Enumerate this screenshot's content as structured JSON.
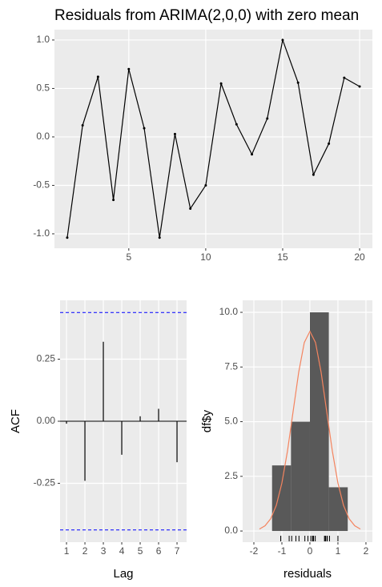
{
  "chart_data": [
    {
      "type": "line",
      "title": "Residuals from ARIMA(2,0,0) with zero mean",
      "x": [
        1,
        2,
        3,
        4,
        5,
        6,
        7,
        8,
        9,
        10,
        11,
        12,
        13,
        14,
        15,
        16,
        17,
        18,
        19,
        20
      ],
      "values": [
        -1.04,
        0.12,
        0.62,
        -0.65,
        0.7,
        0.09,
        -1.04,
        0.03,
        -0.74,
        -0.5,
        0.55,
        0.13,
        -0.18,
        0.19,
        1.0,
        0.56,
        -0.39,
        -0.07,
        0.61,
        0.52
      ],
      "color": "#000000",
      "xlim": [
        0.17,
        20.83
      ],
      "xticks": [
        5,
        10,
        15,
        20
      ],
      "ylim": [
        -1.149,
        1.107
      ],
      "yticks": [
        {
          "value": -1,
          "label": "-1.0"
        },
        {
          "value": -0.5,
          "label": "-0.5"
        },
        {
          "value": 0,
          "label": "0.0"
        },
        {
          "value": 0.5,
          "label": "0.5"
        },
        {
          "value": 1,
          "label": "1.0"
        }
      ],
      "grid": true
    },
    {
      "type": "stem",
      "x_label": "Lag",
      "y_label": "ACF",
      "x": [
        1,
        2,
        3,
        4,
        5,
        6,
        7
      ],
      "values": [
        -0.01,
        -0.24,
        0.32,
        -0.135,
        0.02,
        0.05,
        -0.165
      ],
      "color": "#000000",
      "ci_bounds": [
        -0.438,
        0.438
      ],
      "ci_color": "#0000ff",
      "xlim": [
        0.65,
        7.52
      ],
      "xticks": [
        1,
        2,
        3,
        4,
        5,
        6,
        7
      ],
      "ylim": [
        -0.487,
        0.487
      ],
      "yticks": [
        -0.25,
        {
          "value": 0,
          "label": "0.00"
        },
        0.25
      ],
      "grid": true
    },
    {
      "type": "histogram",
      "x_label": "residuals",
      "y_label": "df$y",
      "bins": [
        -1.35,
        -0.675,
        0,
        0.675,
        1.35
      ],
      "values": [
        3,
        5,
        10,
        2
      ],
      "color": "#595959",
      "curve": {
        "x": [
          -1.8,
          -1.6,
          -1.4,
          -1.2,
          -1.0,
          -0.8,
          -0.6,
          -0.4,
          -0.2,
          0,
          0.2,
          0.4,
          0.6,
          0.8,
          1.0,
          1.2,
          1.4,
          1.6,
          1.8
        ],
        "y": [
          0.09,
          0.24,
          0.56,
          1.17,
          2.19,
          3.66,
          5.46,
          7.26,
          8.62,
          9.13,
          8.62,
          7.26,
          5.46,
          3.66,
          2.19,
          1.17,
          0.56,
          0.24,
          0.09
        ]
      },
      "curve_color": "#f4845f",
      "xlim": [
        -2.4,
        2.23
      ],
      "xticks": [
        -2,
        -1,
        0,
        1,
        2
      ],
      "ylim": [
        -0.51,
        10.55
      ],
      "yticks": [
        {
          "value": 0,
          "label": "0.0"
        },
        2.5,
        {
          "value": 5,
          "label": "5.0"
        },
        7.5,
        {
          "value": 10,
          "label": "10.0"
        }
      ],
      "grid": true
    }
  ]
}
